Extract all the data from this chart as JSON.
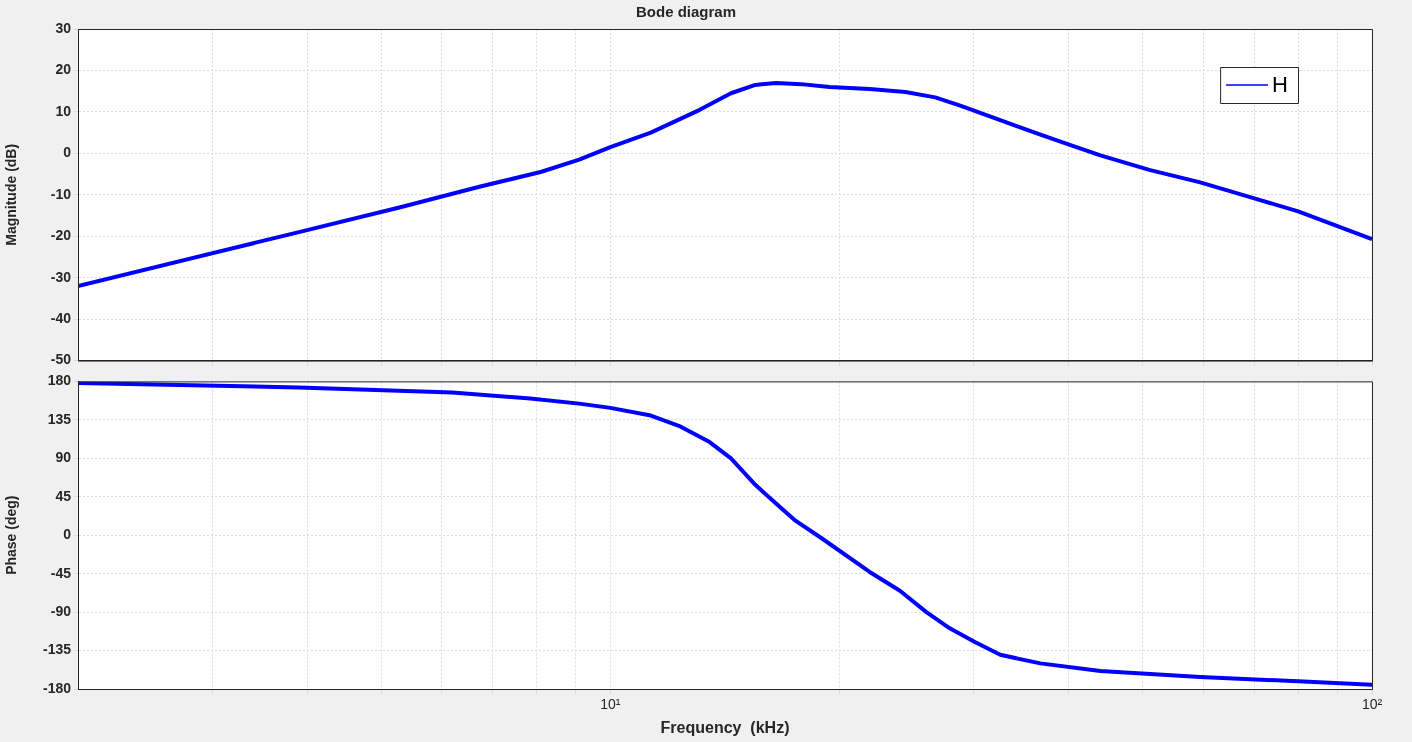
{
  "chart_data": [
    {
      "type": "line",
      "title": "Bode diagram",
      "ylabel": "Magnitude (dB)",
      "log": "x",
      "grid": true,
      "legend": "top right",
      "tick_labels": "y",
      "xlim": [
        2,
        100
      ],
      "xticks": [
        {
          "value": 3,
          "label": null
        },
        {
          "value": 4,
          "label": null
        },
        {
          "value": 5,
          "label": null
        },
        {
          "value": 6,
          "label": null
        },
        {
          "value": 7,
          "label": null
        },
        {
          "value": 8,
          "label": null
        },
        {
          "value": 9,
          "label": null
        },
        {
          "value": 10,
          "label": null
        },
        {
          "value": 20,
          "label": null
        },
        {
          "value": 30,
          "label": null
        },
        {
          "value": 40,
          "label": null
        },
        {
          "value": 50,
          "label": null
        },
        {
          "value": 60,
          "label": null
        },
        {
          "value": 70,
          "label": null
        },
        {
          "value": 80,
          "label": null
        },
        {
          "value": 90,
          "label": null
        },
        {
          "value": 100,
          "label": null
        }
      ],
      "ylim": [
        -50,
        30
      ],
      "yticks": [
        -50,
        -40,
        -30,
        -20,
        -10,
        0,
        10,
        20,
        30
      ],
      "x": [
        2,
        3.9,
        5.3,
        6.75,
        8.1,
        9.1,
        10,
        11.3,
        13.1,
        14.4,
        15.5,
        16.5,
        17.8,
        19.4,
        21.9,
        24.4,
        26.7,
        28.8,
        32.5,
        36.7,
        40.2,
        44,
        51,
        59.5,
        69,
        80,
        100
      ],
      "series": [
        {
          "name": "H",
          "color": "#0000ff",
          "values": [
            -32,
            -19,
            -13,
            -8,
            -4.5,
            -1.5,
            1.5,
            5,
            10.5,
            14.5,
            16.5,
            17,
            16.7,
            16,
            15.5,
            14.8,
            13.5,
            11.5,
            8,
            4.5,
            2,
            -0.5,
            -4,
            -7,
            -10.5,
            -14,
            -20.7
          ]
        }
      ]
    },
    {
      "type": "line",
      "ylabel": "Phase (deg)",
      "xlabel": "Frequency  (kHz)",
      "log": "x",
      "grid": true,
      "xlim": [
        2,
        100
      ],
      "xticks": [
        {
          "value": 3,
          "label": null
        },
        {
          "value": 4,
          "label": null
        },
        {
          "value": 5,
          "label": null
        },
        {
          "value": 6,
          "label": null
        },
        {
          "value": 7,
          "label": null
        },
        {
          "value": 8,
          "label": null
        },
        {
          "value": 9,
          "label": null
        },
        {
          "value": 10,
          "label": "10¹"
        },
        {
          "value": 20,
          "label": null
        },
        {
          "value": 30,
          "label": null
        },
        {
          "value": 40,
          "label": null
        },
        {
          "value": 50,
          "label": null
        },
        {
          "value": 60,
          "label": null
        },
        {
          "value": 70,
          "label": null
        },
        {
          "value": 80,
          "label": null
        },
        {
          "value": 90,
          "label": null
        },
        {
          "value": 100,
          "label": "10²"
        }
      ],
      "ylim": [
        -180,
        180
      ],
      "yticks": [
        -180,
        -135,
        -90,
        -45,
        0,
        45,
        90,
        135,
        180
      ],
      "x": [
        2,
        3.9,
        6.2,
        7.85,
        9.1,
        10,
        11.3,
        12.3,
        13.5,
        14.4,
        15.5,
        16.5,
        17.5,
        18.9,
        21.9,
        24,
        26,
        27.9,
        30.1,
        32.5,
        36.7,
        44,
        59.5,
        80,
        100
      ],
      "series": [
        {
          "color": "#0000ff",
          "values": [
            178,
            173,
            167,
            160,
            154,
            149,
            140,
            128,
            109,
            90,
            59,
            37,
            17,
            -3,
            -43,
            -65,
            -90,
            -109,
            -125,
            -140,
            -150,
            -159,
            -166,
            -171,
            -175
          ]
        }
      ]
    }
  ]
}
